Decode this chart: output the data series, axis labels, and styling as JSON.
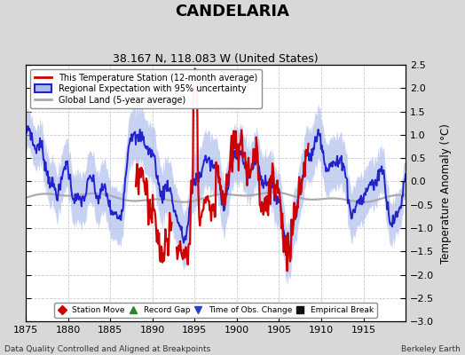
{
  "title": "CANDELARIA",
  "subtitle": "38.167 N, 118.083 W (United States)",
  "ylabel": "Temperature Anomaly (°C)",
  "xlabel_footer": "Data Quality Controlled and Aligned at Breakpoints",
  "footer_right": "Berkeley Earth",
  "xlim": [
    1875,
    1920
  ],
  "ylim": [
    -3,
    2.5
  ],
  "yticks": [
    -3,
    -2.5,
    -2,
    -1.5,
    -1,
    -0.5,
    0,
    0.5,
    1,
    1.5,
    2,
    2.5
  ],
  "xticks": [
    1875,
    1880,
    1885,
    1890,
    1895,
    1900,
    1905,
    1910,
    1915
  ],
  "bg_color": "#d8d8d8",
  "plot_bg_color": "#ffffff",
  "regional_color": "#2222cc",
  "regional_fill_color": "#aabbee",
  "station_color": "#cc0000",
  "global_color": "#aaaaaa",
  "legend_items": [
    {
      "label": "This Temperature Station (12-month average)",
      "color": "#cc0000"
    },
    {
      "label": "Regional Expectation with 95% uncertainty",
      "color": "#2222cc"
    },
    {
      "label": "Global Land (5-year average)",
      "color": "#aaaaaa"
    }
  ],
  "marker_legend": [
    {
      "label": "Station Move",
      "color": "#cc0000",
      "marker": "D"
    },
    {
      "label": "Record Gap",
      "color": "#228822",
      "marker": "^"
    },
    {
      "label": "Time of Obs. Change",
      "color": "#2244cc",
      "marker": "v"
    },
    {
      "label": "Empirical Break",
      "color": "#111111",
      "marker": "s"
    }
  ],
  "title_fontsize": 13,
  "subtitle_fontsize": 9
}
